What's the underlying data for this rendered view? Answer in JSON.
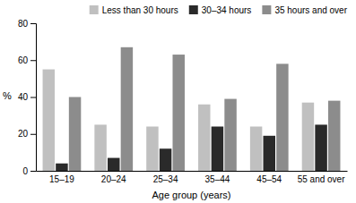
{
  "chart_data": {
    "type": "bar",
    "xlabel": "Age group (years)",
    "ylabel": "%",
    "categories": [
      "15–19",
      "20–24",
      "25–34",
      "35–44",
      "45–54",
      "55 and over"
    ],
    "series": [
      {
        "name": "Less than 30 hours",
        "color": "#c0c0c0",
        "values": [
          55,
          25,
          24,
          36,
          24,
          37
        ]
      },
      {
        "name": "30–34 hours",
        "color": "#2a2a2a",
        "values": [
          4,
          7,
          12,
          24,
          19,
          25
        ]
      },
      {
        "name": "35 hours and over",
        "color": "#8c8c8c",
        "values": [
          40,
          67,
          63,
          39,
          58,
          38
        ]
      }
    ],
    "ylim": [
      0,
      80
    ],
    "yticks": [
      0,
      20,
      40,
      60,
      80
    ],
    "grid": false,
    "legend": "upper right"
  }
}
